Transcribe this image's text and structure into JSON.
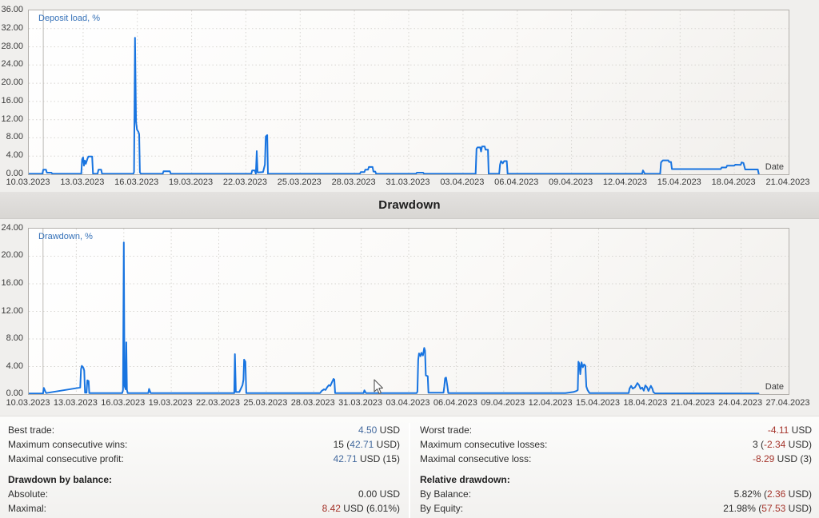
{
  "section_title": "Drawdown",
  "colors": {
    "line": "#1874e0",
    "curve_label": "#3571b8",
    "positive": "#446a9e",
    "negative": "#a5352c"
  },
  "chart_data": [
    {
      "type": "line",
      "label": "Deposit load, %",
      "xlabel": "Date",
      "y_max": 36,
      "x_max_days": 42,
      "start_marker_day": 0.8,
      "y_ticks": [
        "36.00",
        "32.00",
        "28.00",
        "24.00",
        "20.00",
        "16.00",
        "12.00",
        "8.00",
        "4.00",
        "0.00"
      ],
      "x_ticks": [
        "10.03.2023",
        "13.03.2023",
        "16.03.2023",
        "19.03.2023",
        "22.03.2023",
        "25.03.2023",
        "28.03.2023",
        "31.03.2023",
        "03.04.2023",
        "06.04.2023",
        "09.04.2023",
        "12.04.2023",
        "15.04.2023",
        "18.04.2023",
        "21.04.2023"
      ],
      "points": [
        [
          0,
          0.1
        ],
        [
          0.75,
          0.1
        ],
        [
          0.8,
          1.0
        ],
        [
          0.95,
          1.0
        ],
        [
          1.0,
          0.35
        ],
        [
          1.25,
          0.35
        ],
        [
          1.3,
          0.1
        ],
        [
          2.9,
          0.1
        ],
        [
          2.95,
          3.3
        ],
        [
          3.0,
          3.7
        ],
        [
          3.05,
          1.9
        ],
        [
          3.1,
          3.0
        ],
        [
          3.15,
          2.3
        ],
        [
          3.25,
          3.5
        ],
        [
          3.3,
          3.9
        ],
        [
          3.5,
          3.9
        ],
        [
          3.55,
          0.1
        ],
        [
          3.8,
          0.1
        ],
        [
          3.85,
          1.0
        ],
        [
          4.0,
          1.0
        ],
        [
          4.05,
          0.1
        ],
        [
          5.78,
          0.1
        ],
        [
          5.82,
          0.5
        ],
        [
          5.87,
          30.0
        ],
        [
          5.93,
          11.5
        ],
        [
          5.98,
          9.8
        ],
        [
          6.06,
          9.3
        ],
        [
          6.1,
          8.8
        ],
        [
          6.14,
          0.4
        ],
        [
          6.2,
          0.1
        ],
        [
          7.4,
          0.1
        ],
        [
          7.45,
          0.65
        ],
        [
          7.8,
          0.65
        ],
        [
          7.85,
          0.1
        ],
        [
          12.3,
          0.1
        ],
        [
          12.35,
          0.85
        ],
        [
          12.5,
          0.85
        ],
        [
          12.55,
          0.1
        ],
        [
          12.6,
          5.1
        ],
        [
          12.65,
          0.4
        ],
        [
          12.95,
          0.5
        ],
        [
          13.05,
          2.1
        ],
        [
          13.1,
          8.3
        ],
        [
          13.18,
          8.6
        ],
        [
          13.22,
          0.1
        ],
        [
          18.3,
          0.1
        ],
        [
          18.35,
          0.5
        ],
        [
          18.55,
          0.5
        ],
        [
          18.6,
          1.0
        ],
        [
          18.75,
          1.0
        ],
        [
          18.8,
          1.6
        ],
        [
          19.0,
          1.6
        ],
        [
          19.05,
          0.6
        ],
        [
          19.15,
          0.6
        ],
        [
          19.2,
          0.1
        ],
        [
          21.4,
          0.1
        ],
        [
          21.45,
          0.35
        ],
        [
          21.8,
          0.35
        ],
        [
          21.85,
          0.1
        ],
        [
          24.7,
          0.1
        ],
        [
          24.75,
          5.6
        ],
        [
          24.8,
          5.9
        ],
        [
          24.95,
          5.9
        ],
        [
          25.0,
          5.0
        ],
        [
          25.05,
          6.1
        ],
        [
          25.2,
          6.1
        ],
        [
          25.25,
          5.4
        ],
        [
          25.38,
          5.4
        ],
        [
          25.42,
          0.1
        ],
        [
          26.0,
          0.1
        ],
        [
          26.05,
          2.1
        ],
        [
          26.1,
          2.9
        ],
        [
          26.2,
          2.4
        ],
        [
          26.28,
          2.9
        ],
        [
          26.42,
          2.9
        ],
        [
          26.47,
          0.1
        ],
        [
          33.9,
          0.1
        ],
        [
          33.95,
          0.85
        ],
        [
          34.05,
          0.1
        ],
        [
          34.9,
          0.1
        ],
        [
          34.95,
          2.6
        ],
        [
          35.05,
          3.05
        ],
        [
          35.35,
          3.05
        ],
        [
          35.4,
          2.7
        ],
        [
          35.5,
          2.7
        ],
        [
          35.55,
          1.15
        ],
        [
          38.25,
          1.15
        ],
        [
          38.3,
          1.5
        ],
        [
          38.55,
          1.5
        ],
        [
          38.6,
          1.9
        ],
        [
          39.0,
          1.9
        ],
        [
          39.05,
          2.1
        ],
        [
          39.35,
          2.05
        ],
        [
          39.4,
          2.6
        ],
        [
          39.5,
          2.5
        ],
        [
          39.6,
          1.05
        ],
        [
          40.3,
          1.05
        ],
        [
          40.35,
          0.05
        ]
      ]
    },
    {
      "type": "line",
      "label": "Drawdown, %",
      "xlabel": "Date",
      "y_max": 24,
      "x_max_days": 48,
      "start_marker_day": 0.9,
      "y_ticks": [
        "24.00",
        "20.00",
        "16.00",
        "12.00",
        "8.00",
        "4.00",
        "0.00"
      ],
      "x_ticks": [
        "10.03.2023",
        "13.03.2023",
        "16.03.2023",
        "19.03.2023",
        "22.03.2023",
        "25.03.2023",
        "28.03.2023",
        "31.03.2023",
        "03.04.2023",
        "06.04.2023",
        "09.04.2023",
        "12.04.2023",
        "15.04.2023",
        "18.04.2023",
        "21.04.2023",
        "24.04.2023",
        "27.04.2023"
      ],
      "points": [
        [
          0,
          0.08
        ],
        [
          0.9,
          0.08
        ],
        [
          0.95,
          0.9
        ],
        [
          1.05,
          0.35
        ],
        [
          1.1,
          0.15
        ],
        [
          3.25,
          0.95
        ],
        [
          3.3,
          3.6
        ],
        [
          3.35,
          4.1
        ],
        [
          3.45,
          3.8
        ],
        [
          3.5,
          3.4
        ],
        [
          3.55,
          0.2
        ],
        [
          3.65,
          0.2
        ],
        [
          3.7,
          2.0
        ],
        [
          3.78,
          1.9
        ],
        [
          3.82,
          0.15
        ],
        [
          5.9,
          0.15
        ],
        [
          5.95,
          0.6
        ],
        [
          6.0,
          22.0
        ],
        [
          6.05,
          1.2
        ],
        [
          6.12,
          0.7
        ],
        [
          6.16,
          7.5
        ],
        [
          6.2,
          0.6
        ],
        [
          6.25,
          0.15
        ],
        [
          7.55,
          0.15
        ],
        [
          7.6,
          0.75
        ],
        [
          7.7,
          0.15
        ],
        [
          12.98,
          0.15
        ],
        [
          13.02,
          5.8
        ],
        [
          13.08,
          0.3
        ],
        [
          13.3,
          0.3
        ],
        [
          13.5,
          1.3
        ],
        [
          13.56,
          2.1
        ],
        [
          13.6,
          5.0
        ],
        [
          13.68,
          4.7
        ],
        [
          13.74,
          0.15
        ],
        [
          18.4,
          0.15
        ],
        [
          18.5,
          0.45
        ],
        [
          18.65,
          0.7
        ],
        [
          18.75,
          0.6
        ],
        [
          18.85,
          1.0
        ],
        [
          18.95,
          1.3
        ],
        [
          19.05,
          1.2
        ],
        [
          19.15,
          1.7
        ],
        [
          19.25,
          2.2
        ],
        [
          19.3,
          2.1
        ],
        [
          19.35,
          0.15
        ],
        [
          21.15,
          0.15
        ],
        [
          21.2,
          0.55
        ],
        [
          21.3,
          0.15
        ],
        [
          24.5,
          0.15
        ],
        [
          24.55,
          0.35
        ],
        [
          24.6,
          5.0
        ],
        [
          24.65,
          5.9
        ],
        [
          24.75,
          5.5
        ],
        [
          24.8,
          6.0
        ],
        [
          24.9,
          5.6
        ],
        [
          24.98,
          6.7
        ],
        [
          25.03,
          6.3
        ],
        [
          25.08,
          2.7
        ],
        [
          25.2,
          2.6
        ],
        [
          25.25,
          0.2
        ],
        [
          26.2,
          0.2
        ],
        [
          26.25,
          1.1
        ],
        [
          26.3,
          2.3
        ],
        [
          26.36,
          2.4
        ],
        [
          26.44,
          1.2
        ],
        [
          26.5,
          0.15
        ],
        [
          33.9,
          0.15
        ],
        [
          34.4,
          0.3
        ],
        [
          34.6,
          0.45
        ],
        [
          34.68,
          0.6
        ],
        [
          34.72,
          4.7
        ],
        [
          34.78,
          4.4
        ],
        [
          34.84,
          2.9
        ],
        [
          34.92,
          4.6
        ],
        [
          35.0,
          3.9
        ],
        [
          35.08,
          4.3
        ],
        [
          35.16,
          4.1
        ],
        [
          35.22,
          1.1
        ],
        [
          35.3,
          0.6
        ],
        [
          35.42,
          0.15
        ],
        [
          37.9,
          0.15
        ],
        [
          37.95,
          0.8
        ],
        [
          38.05,
          1.2
        ],
        [
          38.15,
          0.8
        ],
        [
          38.3,
          1.0
        ],
        [
          38.45,
          1.6
        ],
        [
          38.55,
          1.3
        ],
        [
          38.65,
          0.75
        ],
        [
          38.75,
          0.95
        ],
        [
          38.85,
          0.5
        ],
        [
          38.95,
          1.25
        ],
        [
          39.05,
          1.0
        ],
        [
          39.15,
          0.45
        ],
        [
          39.3,
          1.2
        ],
        [
          39.4,
          0.75
        ],
        [
          39.45,
          0.3
        ],
        [
          39.55,
          0.12
        ],
        [
          46.1,
          0.08
        ]
      ]
    }
  ],
  "stats": {
    "columns": [
      {
        "rows": [
          {
            "label": "Best trade:",
            "value": [
              {
                "t": "4.50",
                "c": "pos"
              },
              {
                "t": " USD",
                "c": ""
              }
            ]
          },
          {
            "label": "Maximum consecutive wins:",
            "value": [
              {
                "t": "15 (",
                "c": ""
              },
              {
                "t": "42.71",
                "c": "pos"
              },
              {
                "t": " USD)",
                "c": ""
              }
            ]
          },
          {
            "label": "Maximal consecutive profit:",
            "value": [
              {
                "t": "42.71",
                "c": "pos"
              },
              {
                "t": " USD (15)",
                "c": ""
              }
            ]
          },
          {
            "spacer": true
          },
          {
            "label": "Drawdown by balance:",
            "header": true,
            "value": []
          },
          {
            "label": "Absolute:",
            "value": [
              {
                "t": "0.00 USD",
                "c": ""
              }
            ]
          },
          {
            "label": "Maximal:",
            "value": [
              {
                "t": "8.42",
                "c": "neg"
              },
              {
                "t": " USD (6.01%)",
                "c": ""
              }
            ]
          }
        ]
      },
      {
        "rows": [
          {
            "label": "Worst trade:",
            "value": [
              {
                "t": "-4.11",
                "c": "neg"
              },
              {
                "t": " USD",
                "c": ""
              }
            ]
          },
          {
            "label": "Maximum consecutive losses:",
            "value": [
              {
                "t": "3 (",
                "c": ""
              },
              {
                "t": "-2.34",
                "c": "neg"
              },
              {
                "t": " USD)",
                "c": ""
              }
            ]
          },
          {
            "label": "Maximal consecutive loss:",
            "value": [
              {
                "t": "-8.29",
                "c": "neg"
              },
              {
                "t": " USD (3)",
                "c": ""
              }
            ]
          },
          {
            "spacer": true
          },
          {
            "label": "Relative drawdown:",
            "header": true,
            "value": []
          },
          {
            "label": "By Balance:",
            "value": [
              {
                "t": "5.82% (",
                "c": ""
              },
              {
                "t": "2.36",
                "c": "neg"
              },
              {
                "t": " USD)",
                "c": ""
              }
            ]
          },
          {
            "label": "By Equity:",
            "value": [
              {
                "t": "21.98% (",
                "c": ""
              },
              {
                "t": "57.53",
                "c": "neg"
              },
              {
                "t": " USD)",
                "c": ""
              }
            ]
          }
        ]
      }
    ]
  }
}
